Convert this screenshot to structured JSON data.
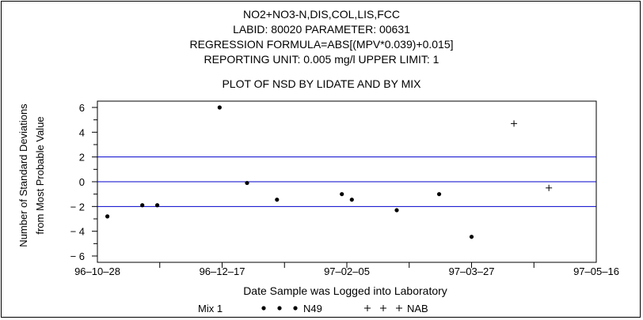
{
  "chart_data": {
    "type": "scatter",
    "title_lines": [
      "NO2+NO3-N,DIS,COL,LIS,FCC",
      "LABID: 80020 PARAMETER: 00631",
      "REGRESSION FORMULA=ABS[(MPV*0.039)+0.015]",
      "REPORTING UNIT: 0.005 mg/l   UPPER LIMIT: 1"
    ],
    "subtitle": "PLOT OF NSD BY LIDATE AND BY MIX",
    "xlabel": "Date Sample was Logged into Laboratory",
    "ylabel_lines": [
      "Number of Standard Deviations",
      "from Most Probable Value"
    ],
    "x_ticks": [
      "96-10-28",
      "96-12-17",
      "97-02-05",
      "97-03-27",
      "97-05-16"
    ],
    "xlim": [
      "96-10-28",
      "97-05-16"
    ],
    "ylim": [
      -6,
      6
    ],
    "y_ticks": [
      6,
      4,
      2,
      0,
      -2,
      -4,
      -6
    ],
    "reference_lines": [
      2,
      0,
      -2
    ],
    "reference_line_color": "#0000cc",
    "legend": {
      "title": "Mix 1",
      "placement": "bottom",
      "entries": [
        {
          "label": "N49",
          "marker": "dot"
        },
        {
          "label": "NAB",
          "marker": "plus"
        }
      ]
    },
    "series": [
      {
        "name": "N49",
        "marker": "dot",
        "points": [
          {
            "x": "96-11-01",
            "y": -2.8
          },
          {
            "x": "96-11-15",
            "y": -1.9
          },
          {
            "x": "96-11-21",
            "y": -1.9
          },
          {
            "x": "96-12-16",
            "y": 6.0
          },
          {
            "x": "96-12-27",
            "y": -0.1
          },
          {
            "x": "97-01-08",
            "y": -1.45
          },
          {
            "x": "97-02-03",
            "y": -1.0
          },
          {
            "x": "97-02-07",
            "y": -1.45
          },
          {
            "x": "97-02-25",
            "y": -2.3
          },
          {
            "x": "97-03-14",
            "y": -1.0
          },
          {
            "x": "97-03-27",
            "y": -4.45
          }
        ]
      },
      {
        "name": "NAB",
        "marker": "plus",
        "points": [
          {
            "x": "97-04-13",
            "y": 4.7
          },
          {
            "x": "97-04-27",
            "y": -0.5
          }
        ]
      }
    ]
  }
}
